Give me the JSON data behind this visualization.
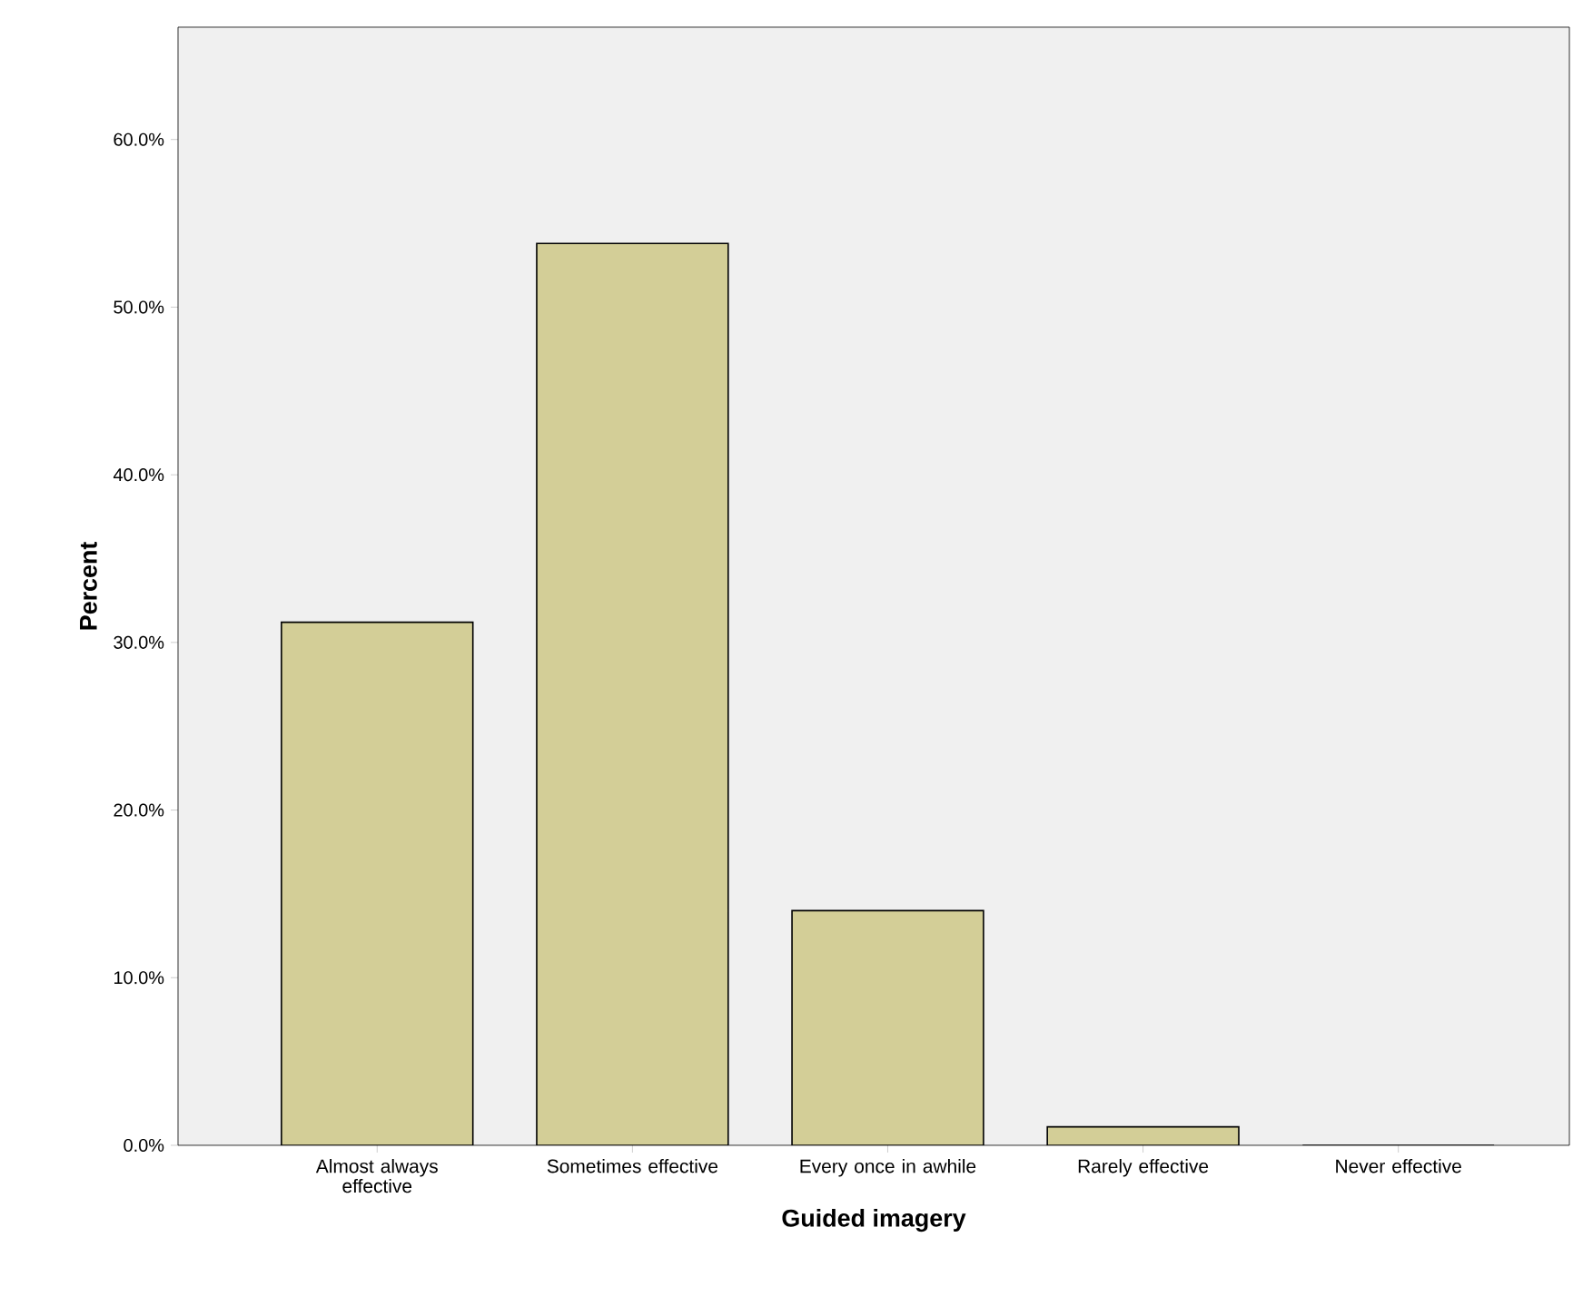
{
  "chart_data": {
    "type": "bar",
    "xlabel": "Guided imagery",
    "ylabel": "Percent",
    "categories": [
      "Almost always effective",
      "Sometimes effective",
      "Every once in awhile",
      "Rarely effective",
      "Never effective"
    ],
    "values": [
      31.2,
      53.8,
      14.0,
      1.1,
      0
    ],
    "color": "#d3ce97",
    "ylim": [
      0,
      66.7
    ],
    "yticks": [
      {
        "value": 0,
        "label": "0.0%"
      },
      {
        "value": 10,
        "label": "10.0%"
      },
      {
        "value": 20,
        "label": "20.0%"
      },
      {
        "value": 30,
        "label": "30.0%"
      },
      {
        "value": 40,
        "label": "40.0%"
      },
      {
        "value": 50,
        "label": "50.0%"
      },
      {
        "value": 60,
        "label": "60.0%"
      }
    ],
    "grid": false
  }
}
